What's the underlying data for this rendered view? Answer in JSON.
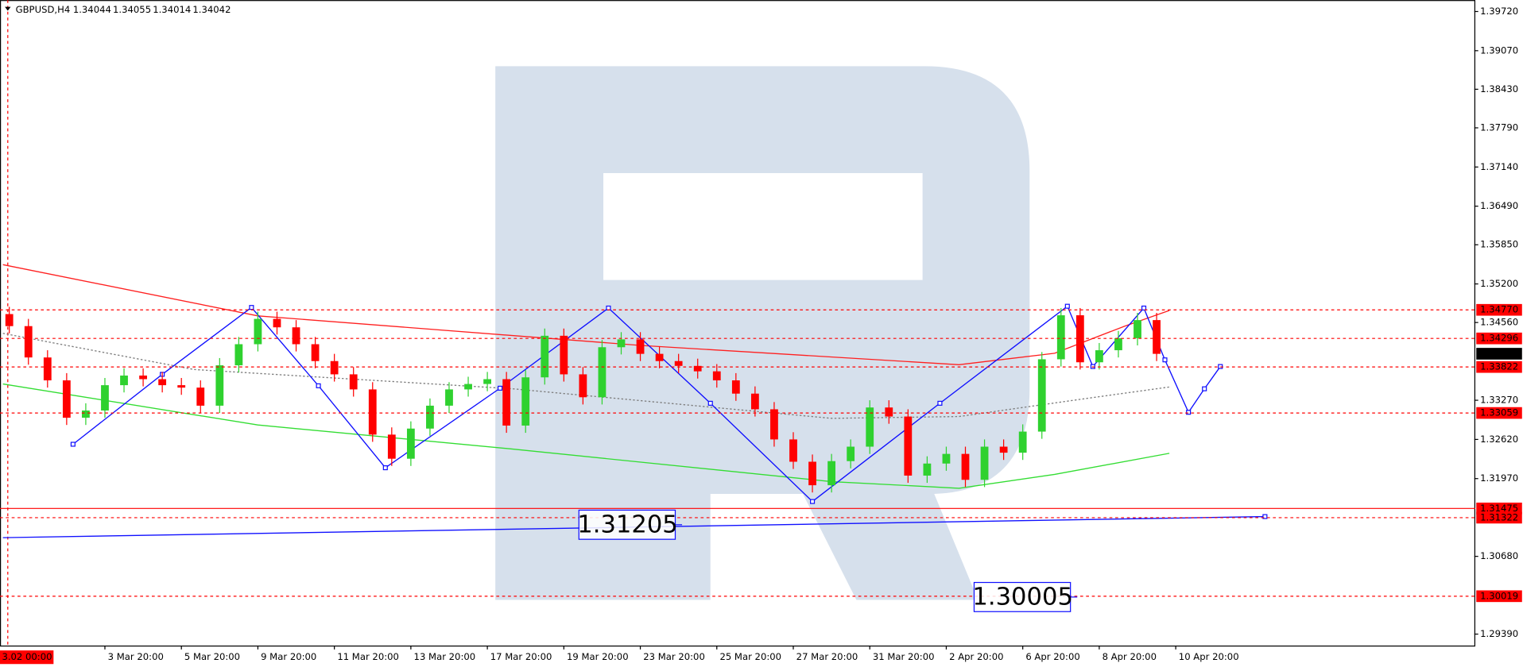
{
  "chart_data": {
    "type": "candlestick",
    "title": "GBPUSD,H4",
    "header_values": [
      {
        "value": 1.34044,
        "label": "1.34044"
      },
      {
        "value": 1.34055,
        "label": "1.34055"
      },
      {
        "value": 1.34014,
        "label": "1.34014"
      },
      {
        "value": 1.34042,
        "label": "1.34042"
      }
    ],
    "cursor_time": "3.02 00:00",
    "up_color": "#2fd12f",
    "down_color": "#ff0000",
    "x": [
      1,
      4,
      7,
      10,
      13,
      16,
      19,
      22,
      25,
      28,
      31,
      34,
      37,
      40,
      43,
      46,
      49,
      52,
      55,
      58,
      61,
      64,
      67,
      70,
      73,
      76,
      79,
      82,
      85,
      88,
      91,
      94,
      97,
      100,
      103,
      106,
      109,
      112,
      115,
      118,
      121,
      124,
      127,
      130,
      133,
      136,
      139,
      142,
      145,
      148,
      151,
      154,
      157,
      160,
      163,
      166,
      169,
      172,
      175,
      178,
      181
    ],
    "open": [
      1.347,
      1.345,
      1.3398,
      1.336,
      1.3298,
      1.331,
      1.3352,
      1.3368,
      1.3362,
      1.3352,
      1.3348,
      1.3318,
      1.3385,
      1.342,
      1.3462,
      1.3448,
      1.342,
      1.3392,
      1.337,
      1.3345,
      1.327,
      1.323,
      1.328,
      1.3318,
      1.3345,
      1.3354,
      1.3362,
      1.3285,
      1.3365,
      1.3434,
      1.337,
      1.3332,
      1.3415,
      1.3428,
      1.3404,
      1.3392,
      1.3384,
      1.3375,
      1.336,
      1.3338,
      1.3312,
      1.3262,
      1.3225,
      1.3186,
      1.3226,
      1.325,
      1.3315,
      1.33,
      1.3202,
      1.3222,
      1.3238,
      1.3195,
      1.325,
      1.324,
      1.3275,
      1.3395,
      1.3468,
      1.339,
      1.341,
      1.343,
      1.346
    ],
    "high": [
      1.3482,
      1.3462,
      1.341,
      1.3372,
      1.3322,
      1.3364,
      1.338,
      1.338,
      1.3374,
      1.3364,
      1.336,
      1.3397,
      1.3432,
      1.3474,
      1.3474,
      1.346,
      1.3432,
      1.3404,
      1.3382,
      1.3357,
      1.3282,
      1.3292,
      1.333,
      1.3357,
      1.3366,
      1.3374,
      1.3374,
      1.3377,
      1.3446,
      1.3446,
      1.3382,
      1.3427,
      1.344,
      1.344,
      1.3416,
      1.3404,
      1.3396,
      1.3387,
      1.3372,
      1.335,
      1.3324,
      1.3274,
      1.3237,
      1.3238,
      1.3262,
      1.3327,
      1.3327,
      1.3312,
      1.3234,
      1.325,
      1.325,
      1.3262,
      1.3262,
      1.3287,
      1.3407,
      1.348,
      1.348,
      1.3422,
      1.3442,
      1.3472,
      1.3472
    ],
    "low": [
      1.3438,
      1.3386,
      1.3348,
      1.3286,
      1.3286,
      1.3298,
      1.334,
      1.335,
      1.334,
      1.3336,
      1.3306,
      1.3306,
      1.3373,
      1.3408,
      1.3436,
      1.3408,
      1.338,
      1.3358,
      1.3333,
      1.3258,
      1.3218,
      1.3218,
      1.3268,
      1.3306,
      1.3333,
      1.3342,
      1.3273,
      1.3273,
      1.3353,
      1.3358,
      1.332,
      1.332,
      1.3403,
      1.3392,
      1.338,
      1.3372,
      1.3363,
      1.3348,
      1.3326,
      1.33,
      1.325,
      1.3213,
      1.3174,
      1.3174,
      1.3214,
      1.3238,
      1.3288,
      1.319,
      1.319,
      1.321,
      1.3183,
      1.3183,
      1.3228,
      1.3228,
      1.3263,
      1.3383,
      1.3378,
      1.3378,
      1.3398,
      1.3418,
      1.3392
    ],
    "close": [
      1.345,
      1.3398,
      1.336,
      1.3298,
      1.331,
      1.3352,
      1.3368,
      1.3362,
      1.3352,
      1.3348,
      1.3318,
      1.3385,
      1.342,
      1.3462,
      1.3448,
      1.342,
      1.3392,
      1.337,
      1.3345,
      1.327,
      1.323,
      1.328,
      1.3318,
      1.3345,
      1.3354,
      1.3362,
      1.3285,
      1.3365,
      1.3434,
      1.337,
      1.3332,
      1.3415,
      1.3428,
      1.3404,
      1.3392,
      1.3384,
      1.3375,
      1.336,
      1.3338,
      1.3312,
      1.3262,
      1.3225,
      1.3186,
      1.3226,
      1.325,
      1.3315,
      1.33,
      1.3202,
      1.3222,
      1.3238,
      1.3195,
      1.325,
      1.324,
      1.3275,
      1.3395,
      1.3468,
      1.339,
      1.341,
      1.343,
      1.346,
      1.3404
    ],
    "lines": [
      {
        "color": "#ff2020",
        "style": "solid",
        "x": [
          0,
          40,
          100,
          150,
          165,
          176,
          183
        ],
        "values": [
          1.3552,
          1.3467,
          1.3418,
          1.3386,
          1.3405,
          1.345,
          1.3476
        ]
      },
      {
        "color": "#33dd33",
        "style": "solid",
        "x": [
          0,
          40,
          80,
          130,
          150,
          165,
          183
        ],
        "values": [
          1.3354,
          1.3286,
          1.3246,
          1.3192,
          1.3181,
          1.3204,
          1.3239
        ]
      },
      {
        "color": "#808080",
        "style": "dotted",
        "x": [
          0,
          30,
          80,
          130,
          150,
          170,
          183
        ],
        "values": [
          1.3438,
          1.3378,
          1.3346,
          1.3297,
          1.33,
          1.333,
          1.3349
        ]
      },
      {
        "color": "#1010ff",
        "style": "solid",
        "markers": true,
        "x": [
          11,
          25,
          39,
          49.5,
          60,
          78,
          95,
          111,
          127,
          147,
          167,
          169,
          171,
          179,
          182.3,
          186,
          188.5,
          191
        ],
        "values": [
          1.3254,
          1.337,
          1.3481,
          1.3351,
          1.3215,
          1.3347,
          1.348,
          1.3322,
          1.3159,
          1.3322,
          1.3483,
          1.3433,
          1.3383,
          1.348,
          1.3394,
          1.3307,
          1.3346,
          1.3383
        ]
      },
      {
        "color": "#1010ff",
        "style": "solid",
        "x": [
          0,
          198
        ],
        "values": [
          1.3099,
          1.3134
        ],
        "end_marker": true
      }
    ],
    "levels": [
      {
        "value": 1.3477,
        "label": "1.34770",
        "style": "dashed"
      },
      {
        "value": 1.34296,
        "label": "1.34296",
        "style": "dashed"
      },
      {
        "value": 1.33822,
        "label": "1.33822",
        "style": "dashed"
      },
      {
        "value": 1.33059,
        "label": "1.33059",
        "style": "dashed"
      },
      {
        "value": 1.31475,
        "label": "1.31475",
        "style": "solid"
      },
      {
        "value": 1.31322,
        "label": "1.31322",
        "style": "dashed"
      },
      {
        "value": 1.30019,
        "label": "1.30019",
        "style": "dashed"
      }
    ],
    "level_color": "#ff0000",
    "current": {
      "value": 1.34042,
      "label": "1.34042"
    },
    "annotations": [
      {
        "x": 98,
        "value": 1.31205,
        "label": "1.31205"
      },
      {
        "x": 160,
        "value": 1.30005,
        "label": "1.30005"
      }
    ],
    "xlim": [
      0,
      231
    ],
    "ylim": [
      1.292,
      1.3991
    ],
    "xticks": [
      {
        "value": 16,
        "label": "3 Mar 20:00"
      },
      {
        "value": 28,
        "label": "5 Mar 20:00"
      },
      {
        "value": 40,
        "label": "9 Mar 20:00"
      },
      {
        "value": 52,
        "label": "11 Mar 20:00"
      },
      {
        "value": 64,
        "label": "13 Mar 20:00"
      },
      {
        "value": 76,
        "label": "17 Mar 20:00"
      },
      {
        "value": 88,
        "label": "19 Mar 20:00"
      },
      {
        "value": 100,
        "label": "23 Mar 20:00"
      },
      {
        "value": 112,
        "label": "25 Mar 20:00"
      },
      {
        "value": 124,
        "label": "27 Mar 20:00"
      },
      {
        "value": 136,
        "label": "31 Mar 20:00"
      },
      {
        "value": 148,
        "label": "2 Apr 20:00"
      },
      {
        "value": 160,
        "label": "6 Apr 20:00"
      },
      {
        "value": 172,
        "label": "8 Apr 20:00"
      },
      {
        "value": 184,
        "label": "10 Apr 20:00"
      }
    ],
    "yticks": [
      {
        "value": 1.3972,
        "label": "1.39720"
      },
      {
        "value": 1.3907,
        "label": "1.39070"
      },
      {
        "value": 1.3843,
        "label": "1.38430"
      },
      {
        "value": 1.3779,
        "label": "1.37790"
      },
      {
        "value": 1.3714,
        "label": "1.37140"
      },
      {
        "value": 1.3649,
        "label": "1.36490"
      },
      {
        "value": 1.3585,
        "label": "1.35850"
      },
      {
        "value": 1.352,
        "label": "1.35200"
      },
      {
        "value": 1.3456,
        "label": "1.34560"
      },
      {
        "value": 1.3327,
        "label": "1.33270"
      },
      {
        "value": 1.3262,
        "label": "1.32620"
      },
      {
        "value": 1.3197,
        "label": "1.31970"
      },
      {
        "value": 1.3068,
        "label": "1.30680"
      },
      {
        "value": 1.2939,
        "label": "1.29390"
      }
    ]
  }
}
